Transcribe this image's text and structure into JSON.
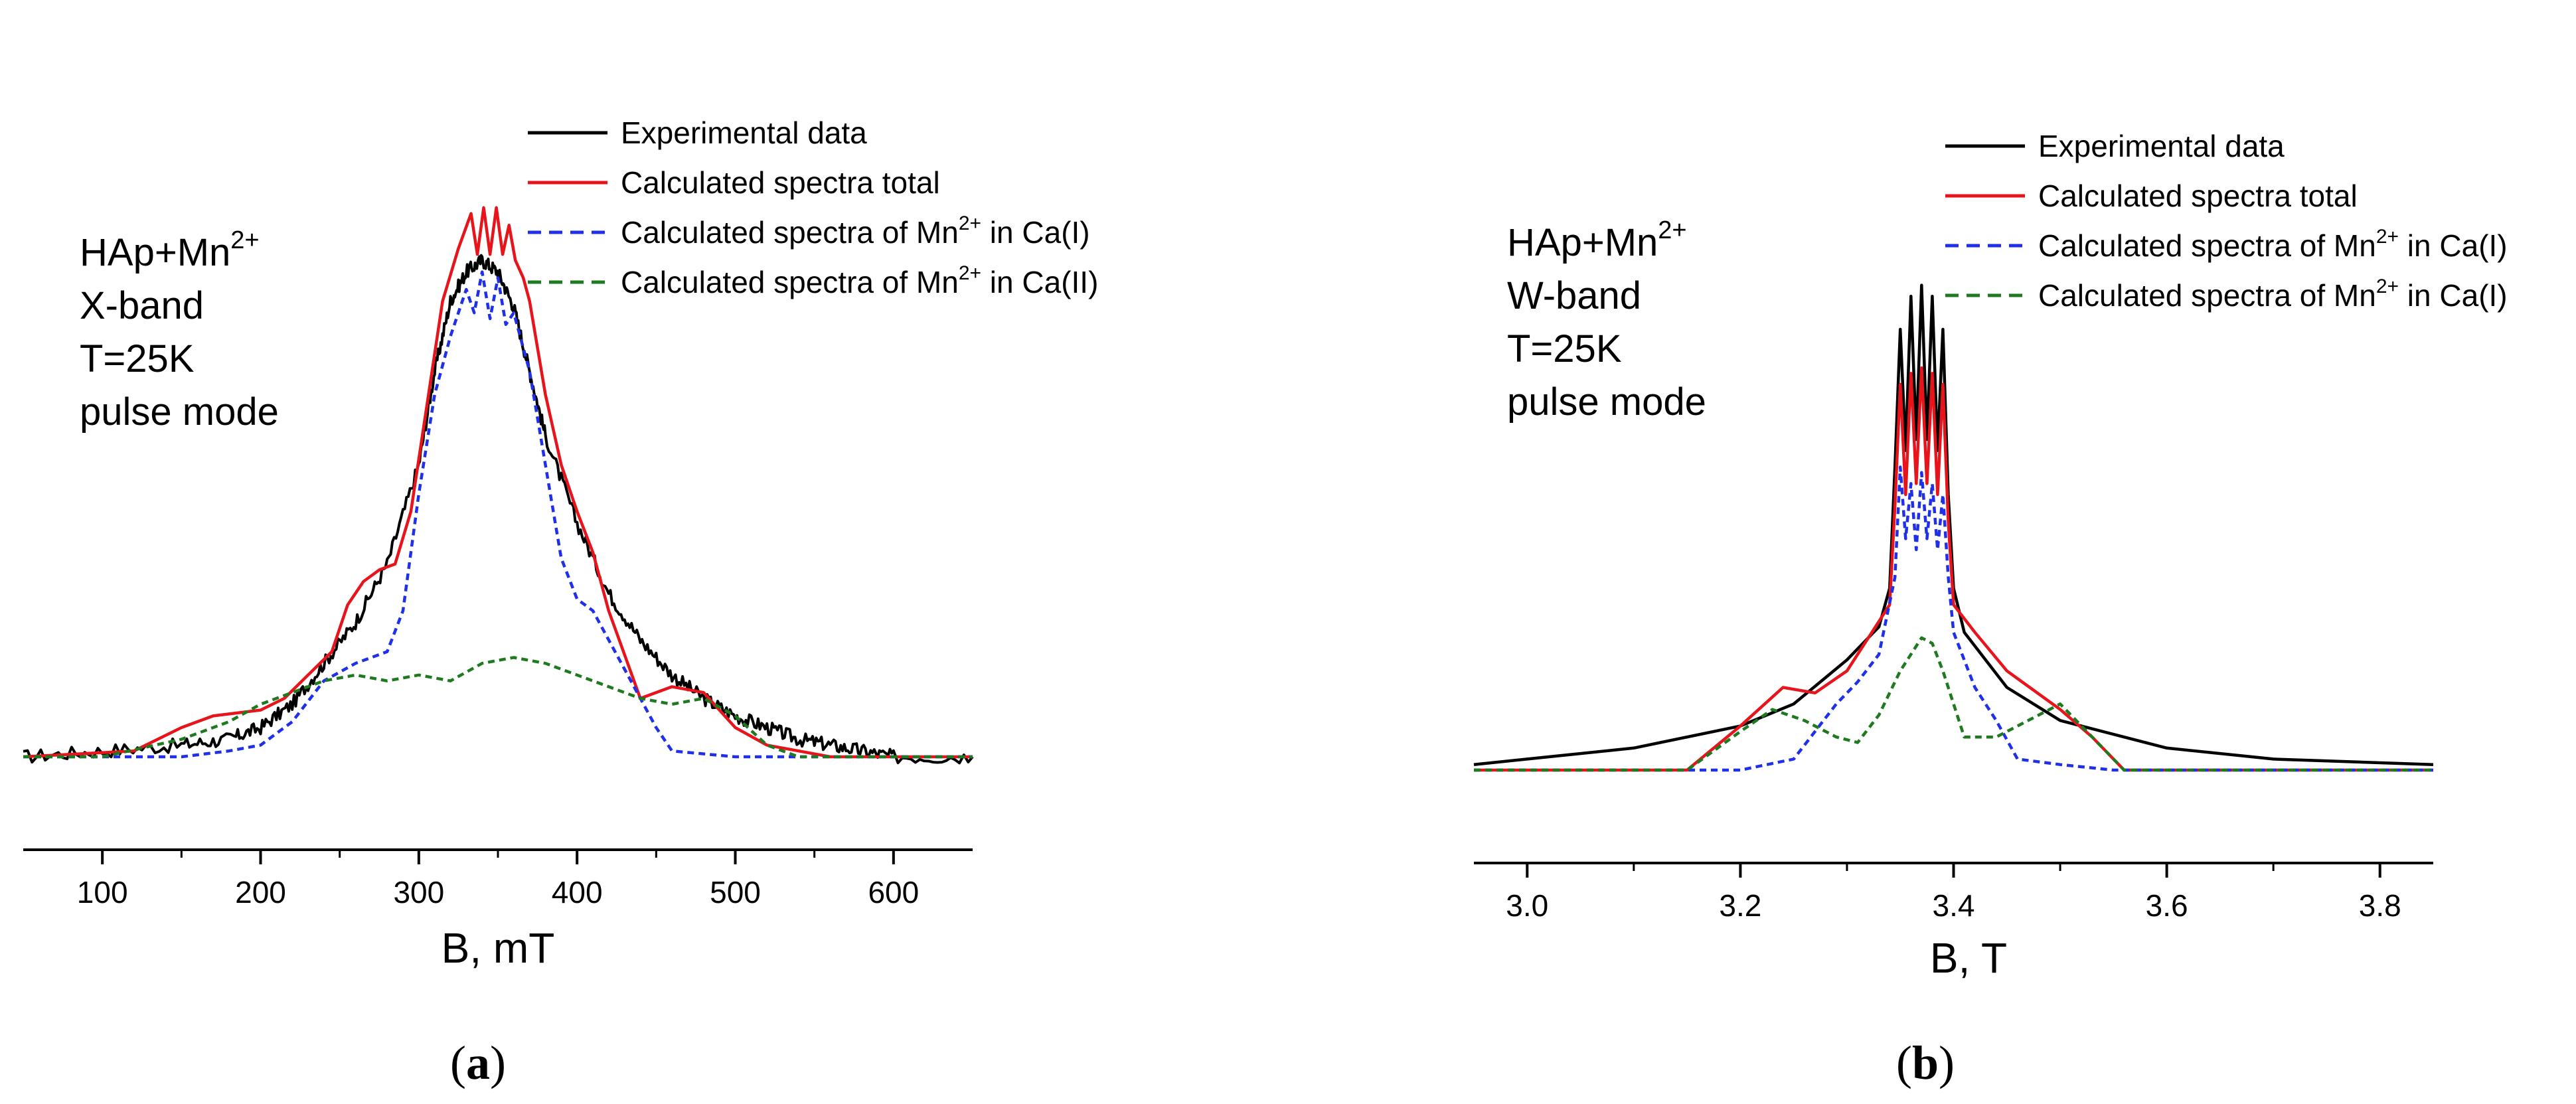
{
  "chart_data": [
    {
      "type": "line",
      "panel_label": "(a)",
      "xlabel": "B, mT",
      "ylabel": "",
      "xlim": [
        50,
        650
      ],
      "ylim": [
        -0.08,
        1.0
      ],
      "xticks": [
        100,
        200,
        300,
        400,
        500,
        600
      ],
      "xtick_labels": [
        "100",
        "200",
        "300",
        "400",
        "500",
        "600"
      ],
      "y_axis_visible": false,
      "annotation": {
        "lines": [
          {
            "base": "HAp+Mn",
            "sup": "2+"
          },
          {
            "base": "X-band"
          },
          {
            "base": "T=25K"
          },
          {
            "base": "pulse mode"
          }
        ]
      },
      "legend": {
        "position": "top-right",
        "entries": [
          {
            "name": "Experimental data",
            "color": "#000000",
            "style": "solid"
          },
          {
            "name": "Calculated spectra total",
            "color": "#e8141c",
            "style": "solid"
          },
          {
            "prefix": "Calculated spectra of Mn",
            "sup": "2+",
            "suffix": " in Ca(I)",
            "color": "#1f30e8",
            "style": "dashed"
          },
          {
            "prefix": "Calculated spectra of Mn",
            "sup": "2+",
            "suffix": " in Ca(II)",
            "color": "#1f7a1f",
            "style": "dashed"
          }
        ]
      },
      "series": [
        {
          "name": "Experimental data",
          "color": "#000000",
          "dash": "",
          "noise": 0.012,
          "x": [
            50,
            100,
            150,
            180,
            200,
            220,
            240,
            260,
            280,
            300,
            310,
            320,
            330,
            340,
            350,
            360,
            370,
            380,
            400,
            420,
            440,
            460,
            480,
            500,
            520,
            540,
            560,
            580,
            600,
            650
          ],
          "y": [
            0.0,
            0.01,
            0.02,
            0.03,
            0.05,
            0.09,
            0.16,
            0.23,
            0.33,
            0.5,
            0.66,
            0.78,
            0.83,
            0.85,
            0.83,
            0.77,
            0.66,
            0.55,
            0.4,
            0.28,
            0.2,
            0.14,
            0.1,
            0.07,
            0.05,
            0.03,
            0.02,
            0.01,
            0.0,
            0.0
          ]
        },
        {
          "name": "Calculated spectra total",
          "color": "#e8141c",
          "dash": "",
          "x": [
            50,
            120,
            150,
            170,
            200,
            215,
            230,
            245,
            255,
            265,
            275,
            285,
            295,
            305,
            315,
            325,
            333,
            337,
            341,
            345,
            349,
            353,
            357,
            361,
            366,
            370,
            380,
            390,
            400,
            410,
            420,
            440,
            460,
            480,
            500,
            520,
            540,
            560,
            600,
            650
          ],
          "y": [
            0.0,
            0.01,
            0.05,
            0.07,
            0.08,
            0.1,
            0.14,
            0.18,
            0.26,
            0.3,
            0.32,
            0.33,
            0.42,
            0.6,
            0.78,
            0.87,
            0.93,
            0.86,
            0.94,
            0.86,
            0.94,
            0.86,
            0.91,
            0.85,
            0.82,
            0.78,
            0.62,
            0.5,
            0.42,
            0.35,
            0.25,
            0.1,
            0.12,
            0.11,
            0.05,
            0.02,
            0.01,
            0.0,
            0.0,
            0.0
          ]
        },
        {
          "name": "Calculated spectra of Mn2+ in Ca(I)",
          "color": "#1f30e8",
          "dash": "10,7",
          "x": [
            50,
            150,
            180,
            200,
            220,
            240,
            260,
            280,
            290,
            300,
            310,
            320,
            330,
            335,
            340,
            345,
            350,
            355,
            360,
            370,
            380,
            390,
            400,
            410,
            430,
            450,
            460,
            500,
            550,
            650
          ],
          "y": [
            0.0,
            0.0,
            0.01,
            0.02,
            0.06,
            0.13,
            0.16,
            0.18,
            0.25,
            0.45,
            0.62,
            0.72,
            0.8,
            0.76,
            0.83,
            0.75,
            0.82,
            0.74,
            0.76,
            0.66,
            0.5,
            0.34,
            0.27,
            0.25,
            0.15,
            0.05,
            0.01,
            0.0,
            0.0,
            0.0
          ]
        },
        {
          "name": "Calculated spectra of Mn2+ in Ca(II)",
          "color": "#1f7a1f",
          "dash": "10,7",
          "x": [
            50,
            100,
            150,
            180,
            200,
            220,
            240,
            260,
            280,
            300,
            320,
            340,
            360,
            380,
            400,
            420,
            440,
            460,
            480,
            500,
            520,
            540,
            560,
            600,
            650
          ],
          "y": [
            0.0,
            0.0,
            0.03,
            0.06,
            0.09,
            0.11,
            0.13,
            0.14,
            0.13,
            0.14,
            0.13,
            0.16,
            0.17,
            0.16,
            0.14,
            0.12,
            0.1,
            0.09,
            0.1,
            0.07,
            0.02,
            0.0,
            0.0,
            0.0,
            0.0
          ]
        }
      ]
    },
    {
      "type": "line",
      "panel_label": "(b)",
      "xlabel": "B, T",
      "ylabel": "",
      "xlim": [
        2.95,
        3.85
      ],
      "ylim": [
        -0.08,
        1.0
      ],
      "xticks": [
        3.0,
        3.2,
        3.4,
        3.6,
        3.8
      ],
      "xtick_labels": [
        "3.0",
        "3.2",
        "3.4",
        "3.6",
        "3.8"
      ],
      "y_axis_visible": false,
      "annotation": {
        "lines": [
          {
            "base": "HAp+Mn",
            "sup": "2+"
          },
          {
            "base": "W-band"
          },
          {
            "base": "T=25K"
          },
          {
            "base": "pulse mode"
          }
        ]
      },
      "legend": {
        "position": "top-right",
        "entries": [
          {
            "name": "Experimental data",
            "color": "#000000",
            "style": "solid"
          },
          {
            "name": "Calculated spectra total",
            "color": "#e8141c",
            "style": "solid"
          },
          {
            "prefix": "Calculated spectra of Mn",
            "sup": "2+",
            "suffix": " in Ca(I)",
            "color": "#1f30e8",
            "style": "dashed"
          },
          {
            "prefix": "Calculated spectra of Mn",
            "sup": "2+",
            "suffix": " in Ca(I)",
            "color": "#1f7a1f",
            "style": "dashed"
          }
        ]
      },
      "series": [
        {
          "name": "Experimental data",
          "color": "#000000",
          "dash": "",
          "x": [
            2.95,
            3.0,
            3.1,
            3.2,
            3.25,
            3.3,
            3.33,
            3.34,
            3.345,
            3.35,
            3.355,
            3.36,
            3.365,
            3.37,
            3.375,
            3.38,
            3.385,
            3.39,
            3.395,
            3.4,
            3.41,
            3.45,
            3.5,
            3.6,
            3.7,
            3.85
          ],
          "y": [
            0.01,
            0.02,
            0.04,
            0.08,
            0.12,
            0.2,
            0.26,
            0.33,
            0.55,
            0.8,
            0.58,
            0.86,
            0.6,
            0.88,
            0.6,
            0.86,
            0.58,
            0.8,
            0.5,
            0.33,
            0.25,
            0.15,
            0.09,
            0.04,
            0.02,
            0.01
          ]
        },
        {
          "name": "Calculated spectra total",
          "color": "#e8141c",
          "dash": "",
          "x": [
            2.95,
            3.15,
            3.2,
            3.24,
            3.27,
            3.3,
            3.32,
            3.34,
            3.345,
            3.35,
            3.355,
            3.36,
            3.365,
            3.37,
            3.375,
            3.38,
            3.385,
            3.39,
            3.395,
            3.4,
            3.42,
            3.45,
            3.5,
            3.53,
            3.56,
            3.6,
            3.85
          ],
          "y": [
            0.0,
            0.0,
            0.08,
            0.15,
            0.14,
            0.18,
            0.24,
            0.3,
            0.48,
            0.7,
            0.5,
            0.72,
            0.52,
            0.73,
            0.52,
            0.72,
            0.5,
            0.7,
            0.45,
            0.3,
            0.25,
            0.18,
            0.11,
            0.06,
            0.0,
            0.0,
            0.0
          ]
        },
        {
          "name": "Calculated spectra of Mn2+ in Ca(I)",
          "color": "#1f30e8",
          "dash": "10,7",
          "x": [
            2.95,
            3.2,
            3.25,
            3.27,
            3.29,
            3.31,
            3.33,
            3.345,
            3.35,
            3.355,
            3.36,
            3.365,
            3.37,
            3.375,
            3.38,
            3.385,
            3.39,
            3.395,
            3.4,
            3.42,
            3.44,
            3.46,
            3.5,
            3.55,
            3.85
          ],
          "y": [
            0.0,
            0.0,
            0.02,
            0.07,
            0.12,
            0.16,
            0.21,
            0.35,
            0.55,
            0.42,
            0.52,
            0.4,
            0.54,
            0.42,
            0.52,
            0.4,
            0.5,
            0.35,
            0.25,
            0.15,
            0.09,
            0.02,
            0.01,
            0.0,
            0.0
          ]
        },
        {
          "name": "Calculated spectra of Mn2+ in Ca(I)",
          "color": "#1f7a1f",
          "dash": "10,7",
          "x": [
            2.95,
            3.15,
            3.2,
            3.23,
            3.26,
            3.29,
            3.31,
            3.33,
            3.35,
            3.37,
            3.38,
            3.39,
            3.41,
            3.44,
            3.47,
            3.5,
            3.53,
            3.56,
            3.85
          ],
          "y": [
            0.0,
            0.0,
            0.07,
            0.11,
            0.09,
            0.06,
            0.05,
            0.1,
            0.18,
            0.24,
            0.23,
            0.18,
            0.06,
            0.06,
            0.09,
            0.12,
            0.06,
            0.0,
            0.0
          ]
        }
      ]
    }
  ]
}
